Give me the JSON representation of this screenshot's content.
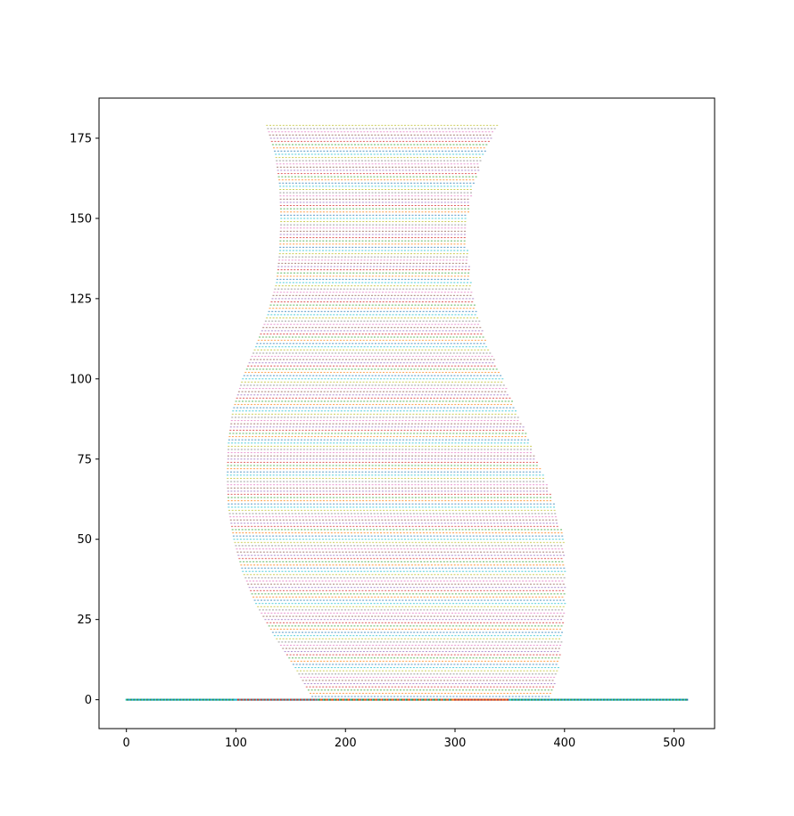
{
  "chart_data": {
    "type": "scatter",
    "title": "",
    "xlabel": "",
    "ylabel": "",
    "xlim": [
      -25,
      537
    ],
    "ylim": [
      -9,
      187.5
    ],
    "xticks": [
      0,
      100,
      200,
      300,
      400,
      500
    ],
    "yticks": [
      0,
      25,
      50,
      75,
      100,
      125,
      150,
      175
    ],
    "xtick_labels": [
      "0",
      "100",
      "200",
      "300",
      "400",
      "500"
    ],
    "ytick_labels": [
      "0",
      "25",
      "50",
      "75",
      "100",
      "125",
      "150",
      "175"
    ],
    "grid": false,
    "legend": "none",
    "row_spacing": 1,
    "point_spacing": 3,
    "point_size": 1,
    "baseline": {
      "y": 0,
      "x_range": [
        0,
        512
      ]
    },
    "vase_profile": {
      "y": [
        0,
        10,
        20,
        30,
        40,
        50,
        60,
        70,
        80,
        90,
        100,
        110,
        120,
        130,
        140,
        150,
        160,
        170,
        179
      ],
      "left_x": [
        171,
        154,
        135,
        118,
        106,
        98,
        93,
        92,
        93,
        97,
        106,
        118,
        129,
        137,
        140,
        141,
        140,
        136,
        128
      ],
      "right_x": [
        387,
        394,
        398,
        400,
        400,
        399,
        391,
        380,
        368,
        356,
        343,
        330,
        320,
        314,
        311,
        311,
        316,
        326,
        338
      ]
    },
    "series_colors": [
      "#1f77b4",
      "#ff7f0e",
      "#2ca02c",
      "#d62728",
      "#9467bd",
      "#8c564b",
      "#e377c2",
      "#7f7f7f",
      "#bcbd22",
      "#17becf"
    ]
  }
}
